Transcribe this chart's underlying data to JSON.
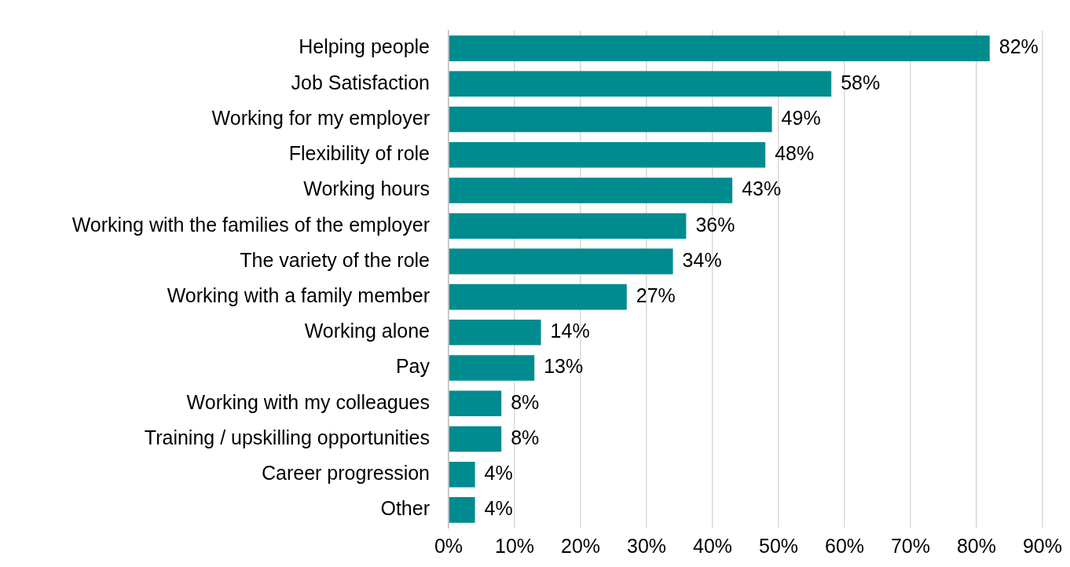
{
  "chart_data": {
    "type": "bar",
    "orientation": "horizontal",
    "categories": [
      "Helping people",
      "Job Satisfaction",
      "Working for my employer",
      "Flexibility of role",
      "Working hours",
      "Working with the families of the employer",
      "The variety of the role",
      "Working with a family member",
      "Working alone",
      "Pay",
      "Working with my colleagues",
      "Training / upskilling opportunities",
      "Career progression",
      "Other"
    ],
    "values": [
      82,
      58,
      49,
      48,
      43,
      36,
      34,
      27,
      14,
      13,
      8,
      8,
      4,
      4
    ],
    "value_labels": [
      "82%",
      "58%",
      "49%",
      "48%",
      "43%",
      "36%",
      "34%",
      "27%",
      "14%",
      "13%",
      "8%",
      "8%",
      "4%",
      "4%"
    ],
    "color": "#008b8f",
    "xlim": [
      0,
      90
    ],
    "xticks": [
      {
        "value": 0,
        "label": "0%"
      },
      {
        "value": 10,
        "label": "10%"
      },
      {
        "value": 20,
        "label": "20%"
      },
      {
        "value": 30,
        "label": "30%"
      },
      {
        "value": 40,
        "label": "40%"
      },
      {
        "value": 50,
        "label": "50%"
      },
      {
        "value": 60,
        "label": "60%"
      },
      {
        "value": 70,
        "label": "70%"
      },
      {
        "value": 80,
        "label": "80%"
      },
      {
        "value": 90,
        "label": "90%"
      }
    ],
    "grid": "x"
  }
}
